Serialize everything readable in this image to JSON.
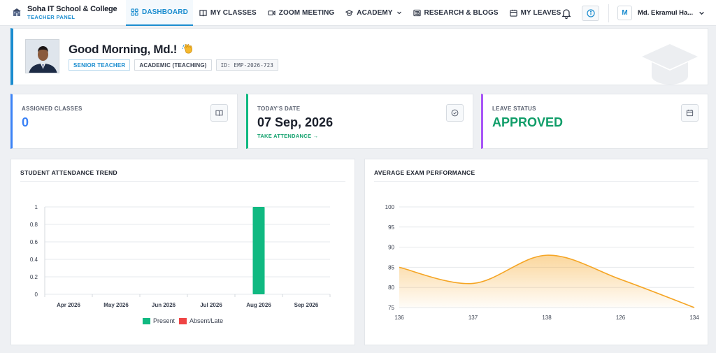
{
  "brand": {
    "name": "Soha IT School & College",
    "subtitle": "TEACHER PANEL"
  },
  "nav": {
    "items": [
      {
        "label": "DASHBOARD",
        "icon": "grid-icon",
        "active": true
      },
      {
        "label": "MY CLASSES",
        "icon": "book-icon"
      },
      {
        "label": "ZOOM MEETING",
        "icon": "video-icon"
      },
      {
        "label": "ACADEMY",
        "icon": "graduation-cap-icon",
        "dropdown": true
      },
      {
        "label": "RESEARCH & BLOGS",
        "icon": "newspaper-icon"
      },
      {
        "label": "MY LEAVES",
        "icon": "calendar-icon"
      }
    ]
  },
  "user": {
    "avatar_letter": "M",
    "name": "Md. Ekramul Ha..."
  },
  "welcome": {
    "greeting": "Good Morning, Md.!",
    "badges": {
      "role": "SENIOR TEACHER",
      "department": "ACADEMIC (TEACHING)",
      "employee_id": "ID: EMP-2026-723"
    }
  },
  "stats": {
    "assigned": {
      "label": "ASSIGNED CLASSES",
      "value": "0",
      "color": "#3b82f6"
    },
    "today": {
      "label": "TODAY'S DATE",
      "value": "07 Sep, 2026",
      "link": "TAKE ATTENDANCE →",
      "color": "#10b981"
    },
    "leave": {
      "label": "LEAVE STATUS",
      "value": "APPROVED",
      "color": "#a855f7",
      "value_color": "#0f9d68"
    }
  },
  "charts": {
    "attendance": {
      "title": "STUDENT ATTENDANCE TREND",
      "chart_data": {
        "type": "bar",
        "categories": [
          "Apr 2026",
          "May 2026",
          "Jun 2026",
          "Jul 2026",
          "Aug 2026",
          "Sep 2026"
        ],
        "series": [
          {
            "name": "Present",
            "values": [
              0,
              0,
              0,
              0,
              1,
              0
            ],
            "color": "#10b981"
          },
          {
            "name": "Absent/Late",
            "values": [
              0,
              0,
              0,
              0,
              0,
              0
            ],
            "color": "#ef4444"
          }
        ],
        "yticks": [
          "0",
          "0.2",
          "0.4",
          "0.6",
          "0.8",
          "1"
        ],
        "ylim": [
          0,
          1
        ],
        "legend": "bottom"
      }
    },
    "exam": {
      "title": "AVERAGE EXAM PERFORMANCE",
      "chart_data": {
        "type": "area",
        "x": [
          "136",
          "137",
          "138",
          "126",
          "134"
        ],
        "values": [
          85,
          81,
          88,
          82,
          75
        ],
        "yticks": [
          "75",
          "80",
          "85",
          "90",
          "95",
          "100"
        ],
        "ylim": [
          75,
          100
        ],
        "color": "#f5a524"
      }
    }
  }
}
